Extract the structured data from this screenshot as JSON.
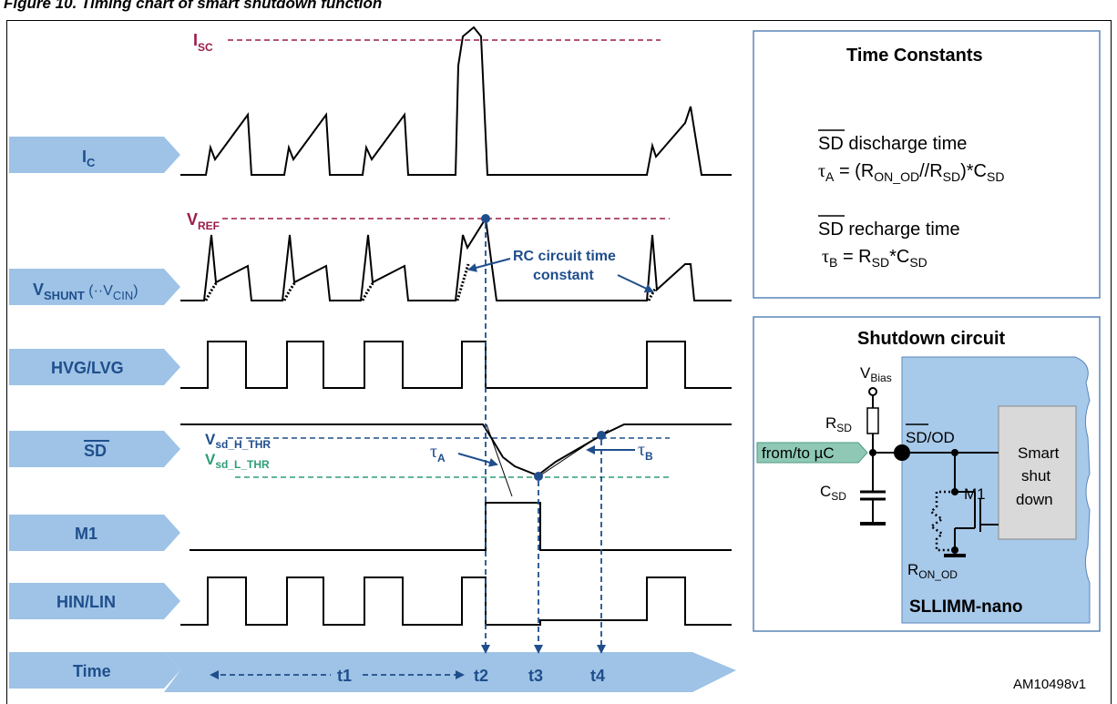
{
  "figure_heading": "Figure 10.  Timing chart of smart shutdown function",
  "signals": {
    "ic": {
      "main": "I",
      "sub": "C"
    },
    "vshunt": {
      "main": "V",
      "sub": "SHUNT",
      "paren_open": " (··V",
      "paren_sub": "CIN",
      "paren_close": ")"
    },
    "hvg": "HVG/LVG",
    "sd": "SD",
    "m1": "M1",
    "hin": "HIN/LIN",
    "time": "Time"
  },
  "annotations": {
    "isc": {
      "main": "I",
      "sub": "SC"
    },
    "vref": {
      "main": "V",
      "sub": "REF"
    },
    "rc_line1": "RC circuit time",
    "rc_line2": "constant",
    "vsd_h": {
      "main": "V",
      "sub": "sd_H_THR"
    },
    "vsd_l": {
      "main": "V",
      "sub": "sd_L_THR"
    },
    "tau_a": {
      "main": "τ",
      "sub": "A"
    },
    "tau_b": {
      "main": "τ",
      "sub": "B"
    }
  },
  "time_markers": {
    "t1": "t1",
    "t2": "t2",
    "t3": "t3",
    "t4": "t4"
  },
  "time_constants": {
    "title": "Time Constants",
    "sd_label": "SD",
    "discharge": " discharge time",
    "recharge": " recharge time",
    "tau_a_eq": {
      "tau": "τ",
      "tau_sub": "A",
      "eq": " = (R",
      "r1_sub": "ON_OD",
      "mid": "//R",
      "r2_sub": "SD",
      "end": ")*C",
      "c_sub": "SD"
    },
    "tau_b_eq": {
      "tau": "τ",
      "tau_sub": "B",
      "eq": " = R",
      "r_sub": "SD",
      "end": "*C",
      "c_sub": "SD"
    }
  },
  "shutdown_circuit": {
    "title": "Shutdown circuit",
    "vbias": {
      "main": "V",
      "sub": "Bias"
    },
    "rsd": {
      "main": "R",
      "sub": "SD"
    },
    "csd": {
      "main": "C",
      "sub": "SD"
    },
    "from_to": "from/to µC",
    "sd_od": "SD/OD",
    "m1": "M1",
    "ron": {
      "main": "R",
      "sub": "ON_OD"
    },
    "smart_lines": [
      "Smart",
      "shut",
      "down"
    ],
    "device": "SLLIMM-nano"
  },
  "code": "AM10498v1",
  "colors": {
    "label_fill": "#9ec3e6",
    "label_text": "#1f4e8c",
    "marker": "#1f4e8c",
    "limit": "#9b1b4b",
    "threshold_low": "#2e9c7a",
    "device_fill": "#a7c9ea"
  }
}
